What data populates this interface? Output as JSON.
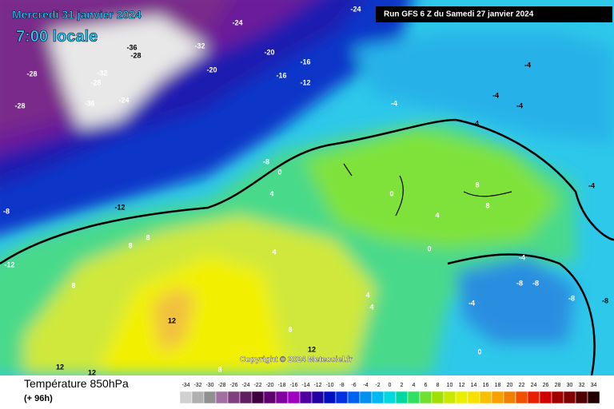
{
  "map": {
    "title": "Mercredi 31 janvier 2024",
    "subtitle": "7:00 locale",
    "run": "Run GFS 6 Z du Samedi 27 janvier 2024",
    "copyright": "Copyright © 2024 Meteociel.fr",
    "labels": [
      -24,
      -24,
      -20,
      -16,
      -16,
      -12,
      -36,
      -28,
      -32,
      -28,
      -28,
      -32,
      -28,
      -24,
      -36,
      -20,
      -4,
      -4,
      -4,
      -4,
      -8,
      -12,
      -8,
      -12,
      0,
      4,
      8,
      8,
      8,
      12,
      12,
      12,
      4,
      4,
      4,
      4,
      8,
      8,
      0,
      0,
      -4,
      -8,
      -8,
      -4,
      -8,
      0,
      -4,
      -8,
      8,
      12,
      8,
      -4
    ]
  },
  "footer": {
    "variable": "Température 850hPa",
    "lead": "(+ 96h)",
    "scale": [
      -34,
      -32,
      -30,
      -28,
      -26,
      -24,
      -22,
      -20,
      -18,
      -16,
      -14,
      -12,
      -10,
      -8,
      -6,
      -4,
      -2,
      0,
      2,
      4,
      6,
      8,
      10,
      12,
      14,
      16,
      18,
      20,
      22,
      24,
      26,
      28,
      30,
      32,
      34
    ]
  }
}
